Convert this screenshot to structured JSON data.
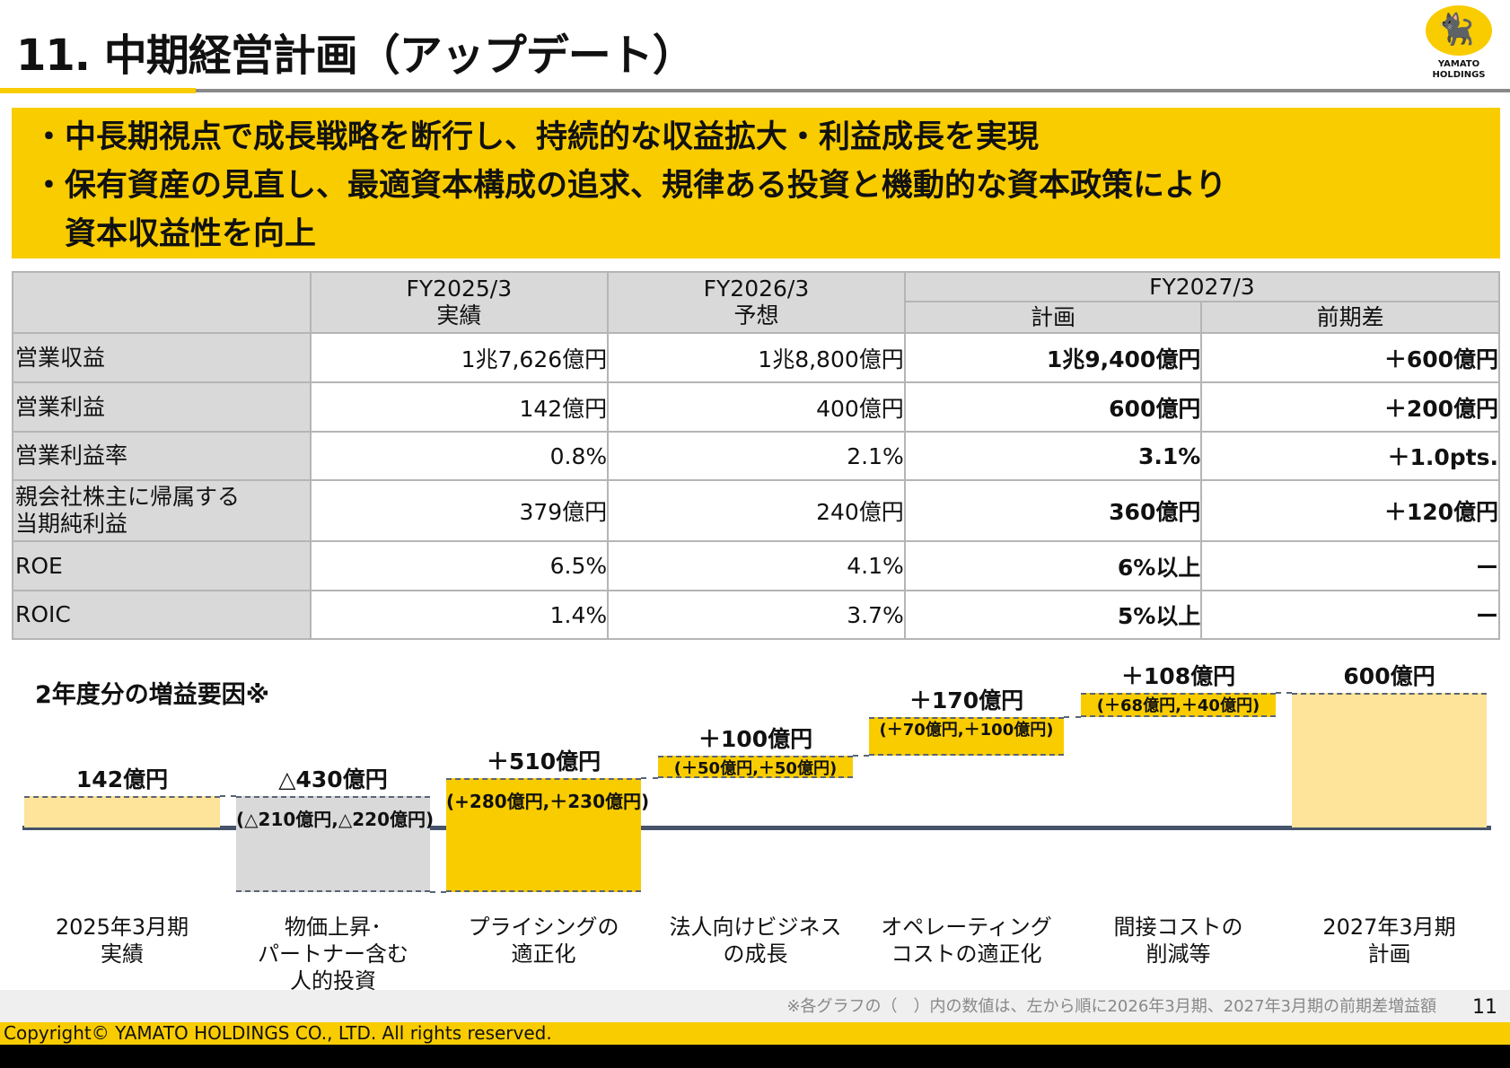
{
  "title": "11. 中期経営計画（アップデート）",
  "logo": {
    "text_line1": "YAMATO",
    "text_line2": "HOLDINGS"
  },
  "banner": [
    "・中長期視点で成長戦略を断行し、持続的な収益拡大・利益成長を実現",
    "・保有資産の見直し、最適資本構成の追求、規律ある投資と機動的な資本政策により",
    "　資本収益性を向上"
  ],
  "table": {
    "headers": {
      "fy2025": "FY2025/3",
      "fy2025_sub": "実績",
      "fy2026": "FY2026/3",
      "fy2026_sub": "予想",
      "fy2027": "FY2027/3",
      "fy2027_plan": "計画",
      "fy2027_diff": "前期差"
    },
    "rows": [
      {
        "label": "営業収益",
        "fy2025": "1兆7,626億円",
        "fy2026": "1兆8,800億円",
        "plan": "1兆9,400億円",
        "diff": "＋600億円"
      },
      {
        "label": "営業利益",
        "fy2025": "142億円",
        "fy2026": "400億円",
        "plan": "600億円",
        "diff": "＋200億円"
      },
      {
        "label": "営業利益率",
        "fy2025": "0.8%",
        "fy2026": "2.1%",
        "plan": "3.1%",
        "diff": "＋1.0pts."
      },
      {
        "label": "親会社株主に帰属する\n当期純利益",
        "fy2025": "379億円",
        "fy2026": "240億円",
        "plan": "360億円",
        "diff": "＋120億円"
      },
      {
        "label": "ROE",
        "fy2025": "6.5%",
        "fy2026": "4.1%",
        "plan": "6%以上",
        "diff": "ー"
      },
      {
        "label": "ROIC",
        "fy2025": "1.4%",
        "fy2026": "3.7%",
        "plan": "5%以上",
        "diff": "ー"
      }
    ]
  },
  "chart_data": {
    "type": "bar",
    "subtype": "waterfall",
    "title": "2年度分の増益要因※",
    "unit": "億円",
    "categories": [
      "2025年3月期\n実績",
      "物価上昇･\nパートナー含む\n人的投資",
      "プライシングの\n適正化",
      "法人向けビジネス\nの成長",
      "オペレーティング\nコストの適正化",
      "間接コストの\n削減等",
      "2027年3月期\n計画"
    ],
    "values": [
      142,
      -430,
      510,
      100,
      170,
      108,
      600
    ],
    "kinds": [
      "total",
      "delta",
      "delta",
      "delta",
      "delta",
      "delta",
      "total"
    ],
    "value_labels": [
      "142億円",
      "△430億円",
      "＋510億円",
      "＋100億円",
      "＋170億円",
      "＋108億円",
      "600億円"
    ],
    "breakdown_labels": [
      "",
      "(△210億円,△220億円)",
      "(+280億円,＋230億円)",
      "(＋50億円,＋50億円)",
      "(＋70億円,＋100億円)",
      "(＋68億円,＋40億円)",
      ""
    ],
    "breakdown_values": [
      null,
      [
        -210,
        -220
      ],
      [
        280,
        230
      ],
      [
        50,
        50
      ],
      [
        70,
        100
      ],
      [
        68,
        40
      ],
      null
    ],
    "colors": {
      "total": "#fde49a",
      "negative": "#d9d9d9",
      "positive": "#f9cc00",
      "baseline": "#46536a"
    }
  },
  "footer": {
    "note": "※各グラフの（　）内の数値は、左から順に2026年3月期、2027年3月期の前期差増益額",
    "page": "11",
    "copyright": "Copyright© YAMATO HOLDINGS CO., LTD. All rights reserved."
  }
}
